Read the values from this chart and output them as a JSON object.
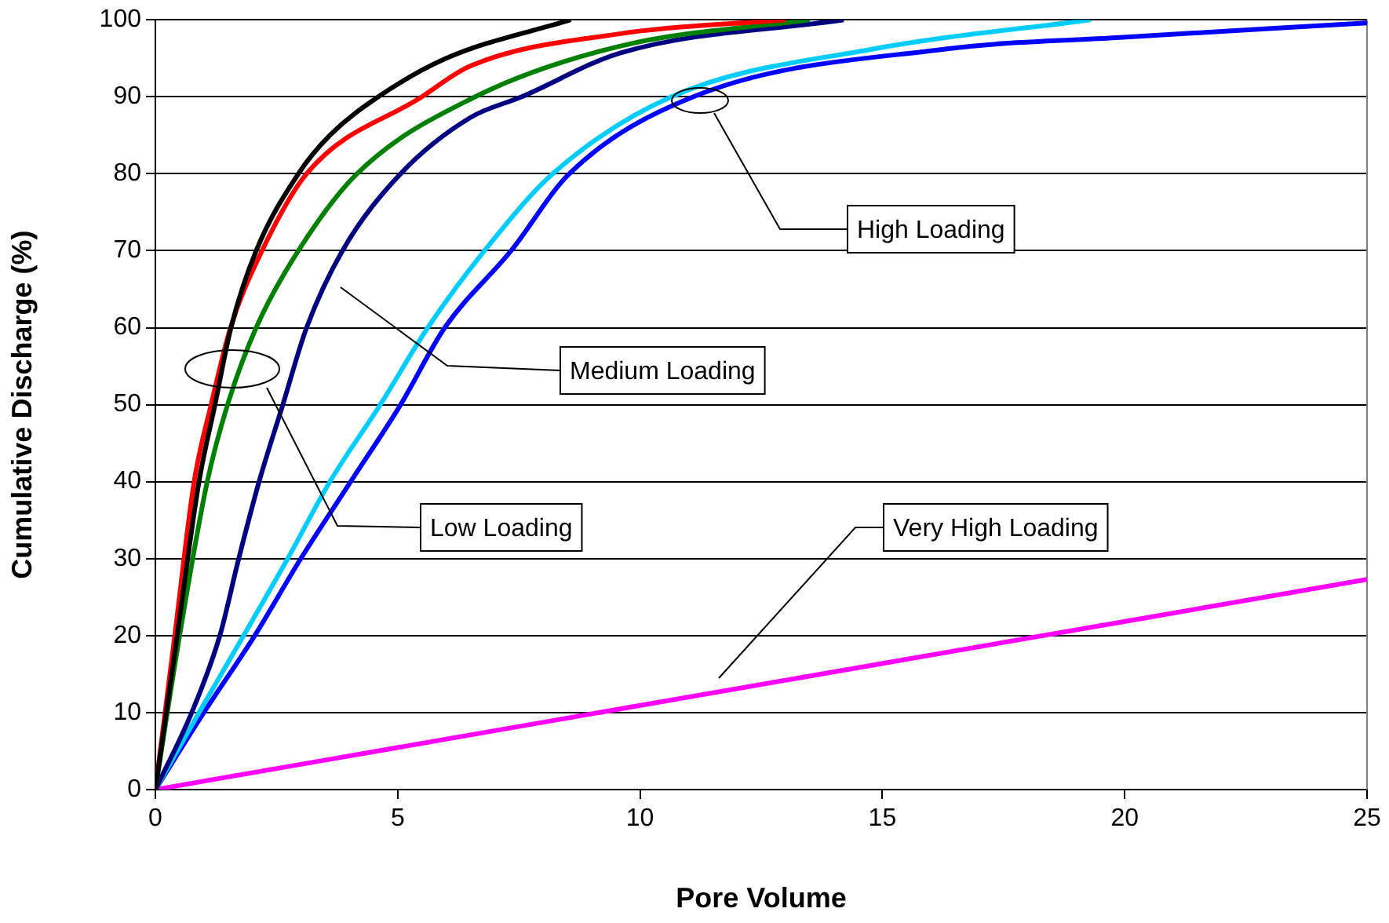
{
  "chart_data": {
    "type": "line",
    "xlabel": "Pore Volume",
    "ylabel": "Cumulative Discharge (%)",
    "xlim": [
      0,
      25
    ],
    "xticks": [
      0,
      5,
      10,
      15,
      20,
      25
    ],
    "ylim": [
      0,
      100
    ],
    "yticks": [
      0,
      10,
      20,
      30,
      40,
      50,
      60,
      70,
      80,
      90,
      100
    ],
    "grid": "y",
    "legend": false,
    "marker": "none",
    "line_style": "solid",
    "series": [
      {
        "color": "#000000",
        "x": [
          0,
          0.45,
          0.9,
          1.23,
          1.56,
          2.08,
          2.95,
          3.6,
          4.6,
          6,
          8.57
        ],
        "values": [
          0,
          20,
          40,
          50,
          60,
          70,
          80,
          85,
          90,
          95,
          100
        ]
      },
      {
        "color": "#ff0000",
        "x": [
          0,
          0.4,
          0.8,
          1.15,
          1.55,
          2.2,
          3.12,
          5.5,
          6.5,
          9.6,
          13
        ],
        "values": [
          0,
          20,
          40,
          50,
          60,
          70,
          80,
          90,
          94,
          98.2,
          100
        ]
      },
      {
        "color": "#008000",
        "x": [
          0,
          0.5,
          1.07,
          1.49,
          2.08,
          2.95,
          4.16,
          6.6,
          9.6,
          13.5
        ],
        "values": [
          0,
          20,
          40,
          50,
          60,
          70,
          80,
          90,
          96.6,
          100
        ]
      },
      {
        "color": "#000080",
        "x": [
          0,
          0.75,
          1.33,
          1.72,
          2.14,
          2.63,
          3.12,
          3.86,
          5.06,
          6.5,
          7.56,
          9.6,
          14.2
        ],
        "values": [
          0,
          10,
          20,
          30,
          40,
          50,
          60,
          70,
          80,
          87.3,
          90,
          95.7,
          100
        ]
      },
      {
        "color": "#00ccff",
        "x": [
          0,
          0.9,
          1.82,
          2.73,
          3.6,
          4.64,
          5.62,
          6.79,
          8.2,
          10.65,
          14.8,
          19.3
        ],
        "values": [
          0,
          10,
          20,
          30,
          40,
          50,
          60,
          70,
          80,
          90,
          96.2,
          100
        ]
      },
      {
        "color": "#0000ff",
        "x": [
          0,
          1,
          2.05,
          3,
          4.03,
          5.06,
          5.97,
          7.34,
          8.54,
          11.1,
          16.3,
          19.9,
          25
        ],
        "values": [
          0,
          10,
          20,
          30,
          40,
          50,
          60,
          70,
          80,
          90,
          96.2,
          97.7,
          99.6
        ]
      },
      {
        "color": "#ff00ff",
        "x": [
          0,
          9.06,
          25
        ],
        "values": [
          0,
          9.9,
          27.3
        ]
      }
    ],
    "annotations": [
      "Low Loading",
      "Medium Loading",
      "High Loading",
      "Very High Loading"
    ]
  }
}
